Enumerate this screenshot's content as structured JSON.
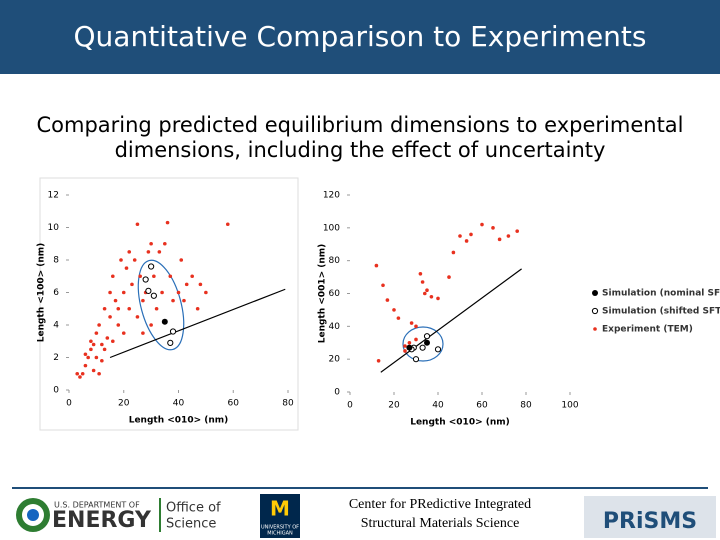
{
  "header": {
    "title": "Quantitative Comparison to Experiments"
  },
  "subtitle": [
    "Comparing predicted equilibrium dimensions to experimental",
    "dimensions, including the effect of uncertainty"
  ],
  "legend": [
    {
      "name": "Simulation (nominal SFTS)",
      "color": "#000000",
      "marker": "filled"
    },
    {
      "name": "Simulation (shifted SFTS)",
      "color": "#000000",
      "marker": "open"
    },
    {
      "name": "Experiment (TEM)",
      "color": "#e8311f",
      "marker": "dot"
    }
  ],
  "chart_data": [
    {
      "type": "scatter",
      "xlabel": "Length <010> (nm)",
      "ylabel": "Length <100> (nm)",
      "xlim": [
        0,
        80
      ],
      "ylim": [
        0,
        12
      ],
      "xticks": [
        0,
        20,
        40,
        60,
        80
      ],
      "yticks": [
        0,
        2,
        4,
        6,
        8,
        10,
        12
      ],
      "series": [
        {
          "color": "#e8311f",
          "marker": "dot",
          "x": [
            5,
            6,
            7,
            8,
            8,
            9,
            10,
            10,
            11,
            12,
            12,
            13,
            14,
            15,
            15,
            16,
            17,
            18,
            19,
            20,
            20,
            21,
            22,
            23,
            24,
            25,
            25,
            26,
            27,
            28,
            29,
            30,
            30,
            31,
            32,
            33,
            34,
            35,
            36,
            37,
            38,
            40,
            41,
            43,
            45,
            47,
            50,
            58,
            3,
            4,
            6,
            9,
            11,
            13,
            16,
            18,
            22,
            27,
            42,
            48
          ],
          "y": [
            1,
            1.5,
            2,
            2.5,
            3,
            1.2,
            3.5,
            2,
            4,
            2.8,
            1.8,
            5,
            3.2,
            4.5,
            6,
            7,
            5.5,
            4,
            8,
            6,
            3.5,
            7.5,
            5,
            6.5,
            8,
            4.5,
            10.2,
            7,
            5.5,
            6,
            8.5,
            4,
            9,
            7,
            5,
            8.5,
            6,
            9,
            10.3,
            7,
            5.5,
            6,
            8,
            6.5,
            7,
            5,
            6,
            10.2,
            1,
            0.8,
            2.2,
            2.8,
            1,
            2.5,
            3,
            5,
            8.5,
            3.5,
            5.5,
            6.5
          ]
        },
        {
          "color": "#000000",
          "marker": "open",
          "x": [
            28,
            30,
            31,
            38,
            37,
            29
          ],
          "y": [
            6.8,
            7.6,
            5.8,
            3.6,
            2.9,
            6.1
          ]
        },
        {
          "color": "#000000",
          "marker": "filled",
          "x": [
            35
          ],
          "y": [
            4.2
          ]
        }
      ],
      "trend_line": {
        "x": [
          15,
          79
        ],
        "y": [
          2.0,
          6.2
        ]
      }
    },
    {
      "type": "scatter",
      "xlabel": "Length <010> (nm)",
      "ylabel": "Length <001> (nm)",
      "xlim": [
        0,
        100
      ],
      "ylim": [
        0,
        120
      ],
      "xticks": [
        0,
        20,
        40,
        60,
        80,
        100
      ],
      "yticks": [
        0,
        20,
        40,
        60,
        80,
        100,
        120
      ],
      "series": [
        {
          "color": "#e8311f",
          "marker": "dot",
          "x": [
            12,
            15,
            17,
            13,
            20,
            22,
            25,
            27,
            30,
            32,
            33,
            34,
            35,
            37,
            40,
            28,
            45,
            47,
            50,
            53,
            55,
            60,
            65,
            68,
            72,
            76,
            25,
            30
          ],
          "y": [
            77,
            65,
            56,
            19,
            50,
            45,
            28,
            30,
            40,
            72,
            67,
            60,
            62,
            58,
            57,
            42,
            70,
            85,
            95,
            92,
            96,
            102,
            100,
            93,
            95,
            98,
            25,
            32
          ]
        },
        {
          "color": "#000000",
          "marker": "open",
          "x": [
            29,
            30,
            33,
            35,
            40,
            28
          ],
          "y": [
            27,
            20,
            27,
            34,
            26,
            26
          ]
        },
        {
          "color": "#000000",
          "marker": "filled",
          "x": [
            35,
            27
          ],
          "y": [
            30,
            27
          ]
        }
      ],
      "trend_line": {
        "x": [
          14,
          78
        ],
        "y": [
          12,
          75
        ]
      }
    }
  ],
  "footer": {
    "doe_top": "U.S. DEPARTMENT OF",
    "doe_main": "ENERGY",
    "office": [
      "Office of",
      "Science"
    ],
    "um_logo": "M",
    "um_name": [
      "UNIVERSITY OF",
      "MICHIGAN"
    ],
    "center": [
      "Center for  PRedictive Integrated",
      "Structural Materials Science"
    ],
    "prisms": "PRiSMS"
  }
}
